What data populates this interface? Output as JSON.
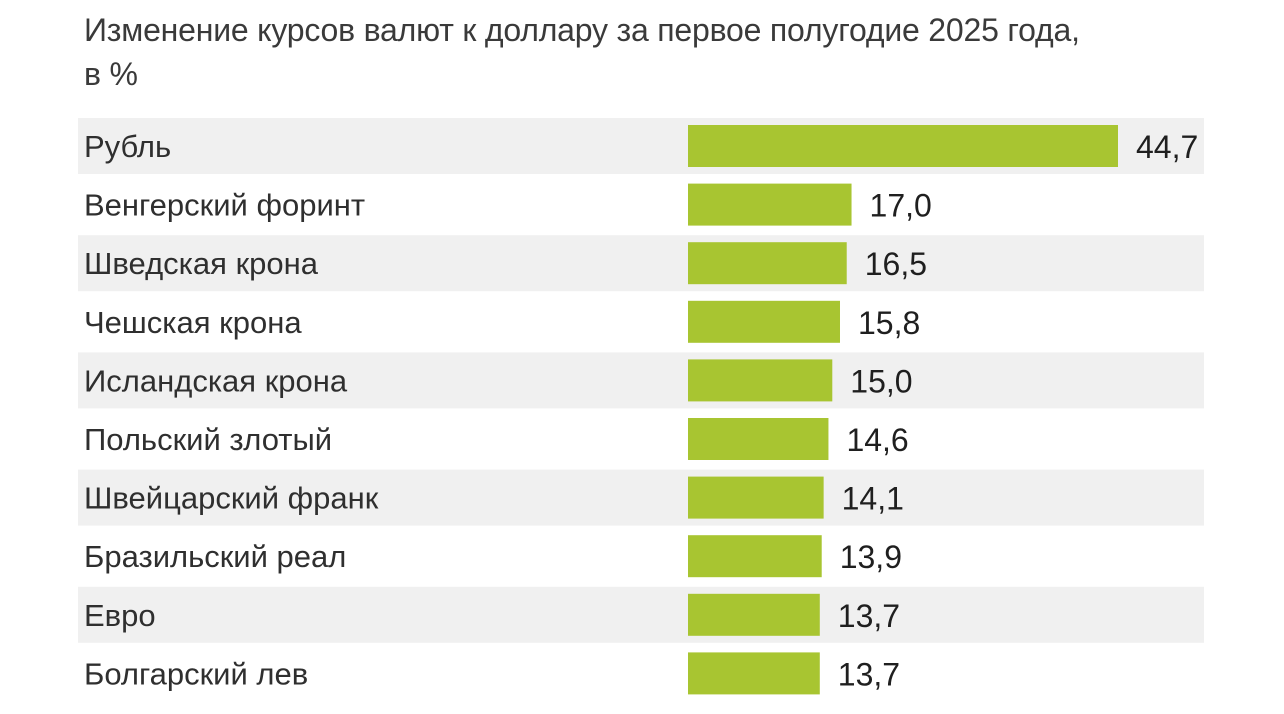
{
  "chart_data": {
    "type": "bar",
    "orientation": "horizontal",
    "title": "Изменение курсов валют к доллару за первое полугодие 2025 года, в %",
    "categories": [
      "Рубль",
      "Венгерский форинт",
      "Шведская крона",
      "Чешская крона",
      "Исландская крона",
      "Польский злотый",
      "Швейцарский франк",
      "Бразильский реал",
      "Евро",
      "Болгарский лев"
    ],
    "values": [
      44.7,
      17.0,
      16.5,
      15.8,
      15.0,
      14.6,
      14.1,
      13.9,
      13.7,
      13.7
    ],
    "value_labels": [
      "44,7",
      "17,0",
      "16,5",
      "15,8",
      "15,0",
      "14,6",
      "14,1",
      "13,9",
      "13,7",
      "13,7"
    ],
    "xlim": [
      0,
      44.7
    ],
    "bar_color": "#a8c531",
    "row_band_color": "#f0f0f0",
    "grid": false,
    "legend": "none"
  }
}
